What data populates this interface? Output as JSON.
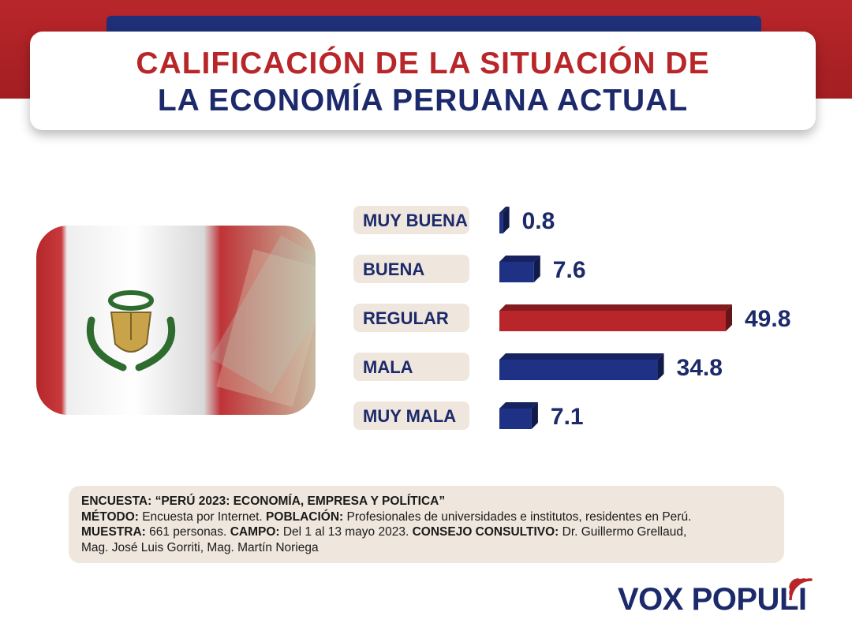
{
  "header": {
    "title_line1": "CALIFICACIÓN DE LA SITUACIÓN DE",
    "title_line2": "LA ECONOMÍA PERUANA ACTUAL"
  },
  "chart_data": {
    "type": "bar",
    "orientation": "horizontal",
    "title": "CALIFICACIÓN DE LA SITUACIÓN DE LA ECONOMÍA PERUANA ACTUAL",
    "categories": [
      "MUY BUENA",
      "BUENA",
      "REGULAR",
      "MALA",
      "MUY MALA"
    ],
    "values": [
      0.8,
      7.6,
      49.8,
      34.8,
      7.1
    ],
    "value_labels": [
      "0.8",
      "7.6",
      "49.8",
      "34.8",
      "7.1"
    ],
    "bar_colors": [
      "#1f3185",
      "#1f3185",
      "#b8262a",
      "#1f3185",
      "#1f3185"
    ],
    "xlim": [
      0,
      49.8
    ],
    "grid": false,
    "legend": "none"
  },
  "info": {
    "encuesta_label": "ENCUESTA:",
    "encuesta_value": "“PERÚ 2023: ECONOMÍA, EMPRESA Y POLÍTICA”",
    "metodo_label": "MÉTODO:",
    "metodo_value": "Encuesta por Internet.",
    "poblacion_label": "POBLACIÓN:",
    "poblacion_value": "Profesionales de universidades e institutos, residentes en Perú.",
    "muestra_label": "MUESTRA:",
    "muestra_value": "661 personas.",
    "campo_label": "CAMPO:",
    "campo_value": "Del 1 al 13 mayo 2023.",
    "consejo_label": "CONSEJO CONSULTIVO:",
    "consejo_value_1": "Dr. Guillermo Grellaud,",
    "consejo_value_2": "Mag. José Luis Gorriti, Mag. Martín Noriega"
  },
  "brand": {
    "name": "VOX POPULI",
    "color": "#1c2a6b",
    "accent": "#b8262a"
  },
  "image": {
    "icon": "peru-flag-banknotes-image"
  }
}
